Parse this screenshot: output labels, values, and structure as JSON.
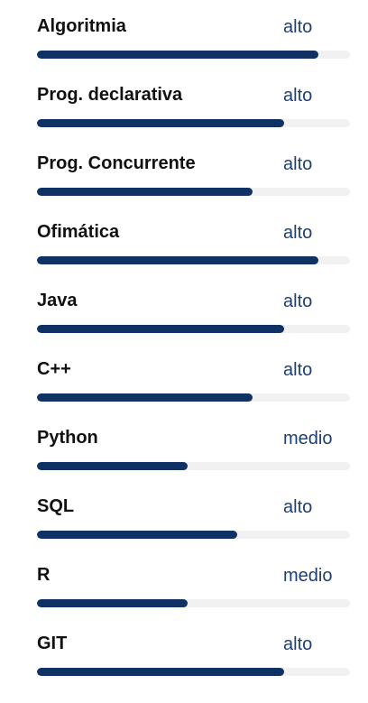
{
  "colors": {
    "bar_fill": "#0f3164",
    "bar_track": "#f1f1f2",
    "level_text": "#1e3f73",
    "name_text": "#111111"
  },
  "skills": [
    {
      "name": "Algoritmia",
      "level": "alto",
      "progress": 0.9
    },
    {
      "name": "Prog. declarativa",
      "level": "alto",
      "progress": 0.79
    },
    {
      "name": "Prog. Concurrente",
      "level": "alto",
      "progress": 0.69
    },
    {
      "name": "Ofimática",
      "level": "alto",
      "progress": 0.9
    },
    {
      "name": "Java",
      "level": "alto",
      "progress": 0.79
    },
    {
      "name": "C++",
      "level": "alto",
      "progress": 0.69
    },
    {
      "name": "Python",
      "level": "medio",
      "progress": 0.48
    },
    {
      "name": "SQL",
      "level": "alto",
      "progress": 0.64
    },
    {
      "name": "R",
      "level": "medio",
      "progress": 0.48
    },
    {
      "name": "GIT",
      "level": "alto",
      "progress": 0.79
    }
  ]
}
